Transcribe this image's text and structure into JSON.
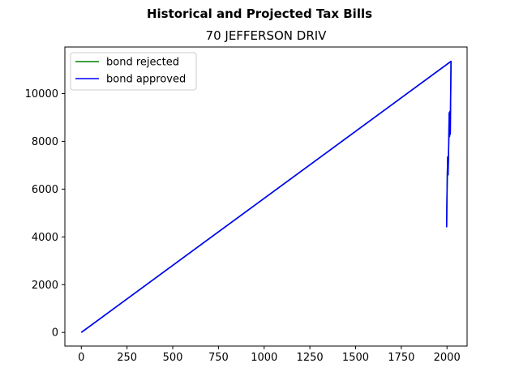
{
  "chart_data": {
    "type": "line",
    "title": "Historical and Projected Tax Bills",
    "subtitle": "70 JEFFERSON DRIV",
    "xlabel": "",
    "ylabel": "",
    "xlim": [
      -90,
      2110
    ],
    "ylim": [
      -570,
      11950
    ],
    "xticks": [
      0,
      250,
      500,
      750,
      1000,
      1250,
      1500,
      1750,
      2000
    ],
    "yticks": [
      0,
      2000,
      4000,
      6000,
      8000,
      10000
    ],
    "grid": false,
    "legend_position": "upper left",
    "series": [
      {
        "name": "bond rejected",
        "color": "#008000",
        "x": [
          0,
          2022,
          2018,
          2016,
          2014,
          2012,
          2010,
          2008,
          2006,
          2004,
          2002,
          2000,
          1998
        ],
        "y": [
          0,
          11350,
          8300,
          9250,
          8200,
          9200,
          8100,
          7300,
          6600,
          7350,
          6700,
          5700,
          4400
        ]
      },
      {
        "name": "bond approved",
        "color": "#0000ff",
        "x": [
          0,
          2022,
          2018,
          2016,
          2014,
          2012,
          2010,
          2008,
          2006,
          2004,
          2002,
          2000,
          1998
        ],
        "y": [
          0,
          11350,
          8300,
          9250,
          8200,
          9200,
          8100,
          7300,
          6600,
          7350,
          6700,
          5700,
          4400
        ]
      }
    ]
  }
}
